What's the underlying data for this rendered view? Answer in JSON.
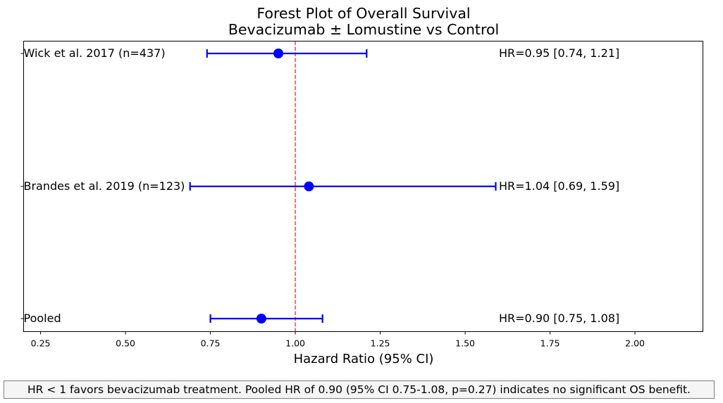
{
  "chart_data": {
    "type": "forest",
    "title": "Forest Plot of Overall Survival",
    "subtitle": "Bevacizumab ± Lomustine vs Control",
    "xlabel": "Hazard Ratio (95% CI)",
    "xlim": [
      0.2,
      2.2
    ],
    "xticks": [
      "0.25",
      "0.50",
      "0.75",
      "1.00",
      "1.25",
      "1.50",
      "1.75",
      "2.00"
    ],
    "xtick_values": [
      0.25,
      0.5,
      0.75,
      1.0,
      1.25,
      1.5,
      1.75,
      2.0
    ],
    "reference_line": 1.0,
    "reference_color": "#ff0000",
    "marker_color": "#0000ff",
    "grid": false,
    "rows": [
      {
        "label": "Wick et al. 2017 (n=437)",
        "hr": 0.95,
        "lower": 0.74,
        "upper": 1.21,
        "annotation": "HR=0.95 [0.74, 1.21]"
      },
      {
        "label": "Brandes et al. 2019 (n=123)",
        "hr": 1.04,
        "lower": 0.69,
        "upper": 1.59,
        "annotation": "HR=1.04 [0.69, 1.59]"
      },
      {
        "label": "Pooled",
        "hr": 0.9,
        "lower": 0.75,
        "upper": 1.08,
        "annotation": "HR=0.90 [0.75, 1.08]"
      }
    ]
  },
  "caption": "HR < 1 favors bevacizumab treatment. Pooled HR of 0.90 (95% CI 0.75-1.08, p=0.27) indicates no significant OS benefit."
}
